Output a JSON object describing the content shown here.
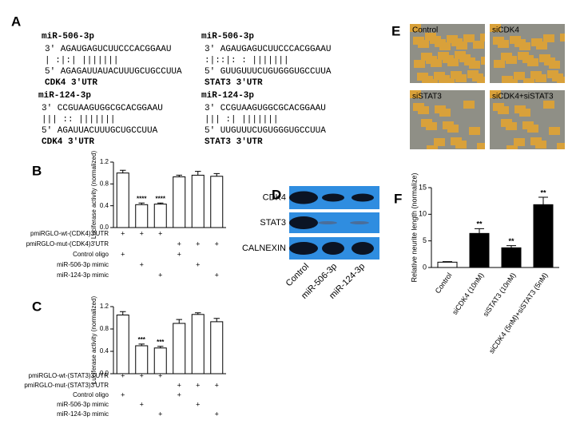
{
  "panel_a": {
    "label": "A",
    "alignments": [
      {
        "mirna": "miR-506-3p",
        "top": "3′ AGAUGAGUCUUCCCACGGAAU",
        "pairs": "    | :|:|   |||||||",
        "bottom": "5′ AGAGAUUAUACUUUGCUGCCUUA",
        "target": "CDK4 3′UTR"
      },
      {
        "mirna": "miR-506-3p",
        "top": "3′ AGAUGAGUCUUCCCACGGAAU",
        "pairs": "     :|::|:  : |||||||",
        "bottom": "5′ GUUGUUUCUGUGGGUGCCUUA",
        "target": "STAT3 3′UTR"
      },
      {
        "mirna": "miR-124-3p",
        "top": "3′ CCGUAAGUGGCGCACGGAAU",
        "pairs": "    |||  :: |||||||",
        "bottom": "5′ AGAUUACUUUGCUGCCUUA",
        "target": "CDK4 3′UTR"
      },
      {
        "mirna": "miR-124-3p",
        "top": "3′ CCGUAAGUGGCGCACGGAAU",
        "pairs": "        |||  :| |||||||",
        "bottom": "5′ UUGUUUCUGUGGGUGCCUUA",
        "target": "STAT3 3′UTR"
      }
    ]
  },
  "panel_d": {
    "label": "D",
    "proteins": [
      "CDK4",
      "STAT3",
      "CALNEXIN"
    ],
    "lanes": [
      "Control",
      "miR-506-3p",
      "miR-124-3p"
    ]
  },
  "panel_e": {
    "label": "E",
    "images": [
      "Control",
      "siCDK4",
      "siSTAT3",
      "siCDK4+siSTAT3"
    ]
  },
  "chart_data": [
    {
      "type": "bar",
      "panel": "B",
      "ylabel": "Luciferase activity (normalized)",
      "values": [
        1.0,
        0.42,
        0.43,
        0.93,
        0.96,
        0.94
      ],
      "errors": [
        0.05,
        0.03,
        0.02,
        0.03,
        0.07,
        0.05
      ],
      "annotations": [
        null,
        "****",
        "****",
        null,
        null,
        null
      ],
      "color": "#ffffff",
      "ylim": [
        0,
        1.2
      ],
      "yticks": [
        {
          "value": 0,
          "label": "0.0"
        },
        0.4,
        0.8,
        1.2
      ],
      "conditions": [
        {
          "label": "pmiRGLO-wt-(CDK4)3'UTR",
          "marks": [
            "+",
            "+",
            "+",
            null,
            null,
            null
          ]
        },
        {
          "label": "pmiRGLO-mut-(CDK4)3'UTR",
          "marks": [
            null,
            null,
            null,
            "+",
            "+",
            "+"
          ]
        },
        {
          "label": "Control oligo",
          "marks": [
            "+",
            null,
            null,
            "+",
            null,
            null
          ]
        },
        {
          "label": "miR-506-3p mimic",
          "marks": [
            null,
            "+",
            null,
            null,
            "+",
            null
          ]
        },
        {
          "label": "miR-124-3p mimic",
          "marks": [
            null,
            null,
            "+",
            null,
            null,
            "+"
          ]
        }
      ]
    },
    {
      "type": "bar",
      "panel": "C",
      "ylabel": "Luciferase activity (normalized)",
      "values": [
        1.05,
        0.5,
        0.46,
        0.9,
        1.06,
        0.93
      ],
      "errors": [
        0.06,
        0.03,
        0.03,
        0.07,
        0.03,
        0.06
      ],
      "annotations": [
        null,
        "***",
        "***",
        null,
        null,
        null
      ],
      "color": "#ffffff",
      "ylim": [
        0,
        1.2
      ],
      "yticks": [
        {
          "value": 0,
          "label": "0.0"
        },
        0.4,
        0.8,
        1.2
      ],
      "conditions": [
        {
          "label": "pmiRGLO-wt-(STAT3)3'UTR",
          "marks": [
            "+",
            "+",
            "+",
            null,
            null,
            null
          ]
        },
        {
          "label": "pmiRGLO-mut-(STAT3)3'UTR",
          "marks": [
            null,
            null,
            null,
            "+",
            "+",
            "+"
          ]
        },
        {
          "label": "Control oligo",
          "marks": [
            "+",
            null,
            null,
            "+",
            null,
            null
          ]
        },
        {
          "label": "miR-506-3p mimic",
          "marks": [
            null,
            "+",
            null,
            null,
            "+",
            null
          ]
        },
        {
          "label": "miR-124-3p mimic",
          "marks": [
            null,
            null,
            "+",
            null,
            null,
            "+"
          ]
        }
      ]
    },
    {
      "type": "bar",
      "panel": "F",
      "ylabel": "Relative neurite length (normalize)",
      "categories": [
        "Control",
        "siCDK4 (10nM)",
        "siSTAT3 (10nM)",
        "siCDK4 (5nM)+siSTAT3 (5nM)"
      ],
      "values": [
        1.0,
        6.4,
        3.7,
        11.8
      ],
      "errors": [
        0.1,
        0.9,
        0.4,
        1.4
      ],
      "annotations": [
        null,
        "**",
        "**",
        "**"
      ],
      "colors": [
        "#ffffff",
        "#000000",
        "#000000",
        "#000000"
      ],
      "ylim": [
        0,
        15
      ],
      "yticks": [
        0,
        5,
        10,
        15
      ]
    }
  ]
}
